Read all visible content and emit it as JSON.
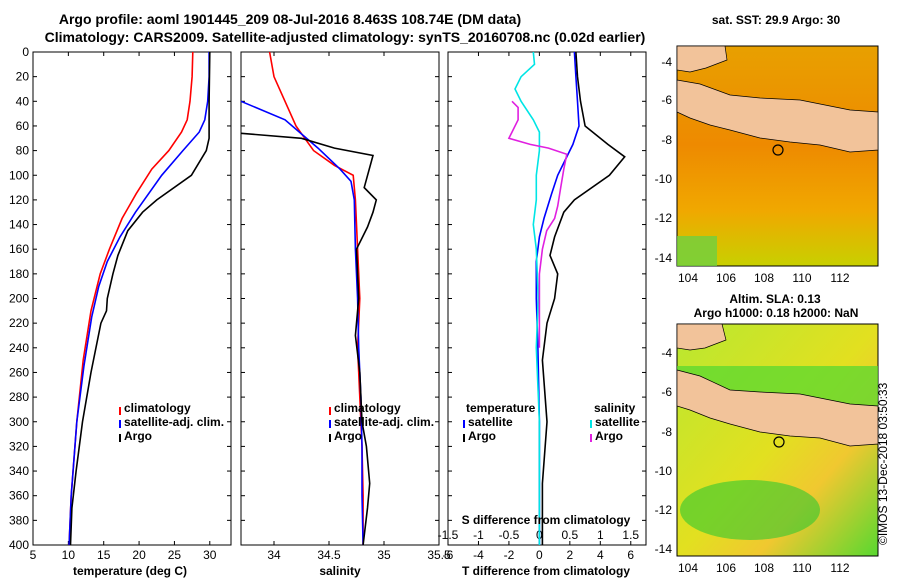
{
  "colors": {
    "climatology": "#ff0000",
    "satellite": "#0000ff",
    "argo": "#000000",
    "sat_s": "#00e5e5",
    "argo_s": "#e020e0",
    "land": "#f2c39a"
  },
  "chart_data": [
    {
      "type": "line",
      "id": "temp",
      "title": "Argo profile: aoml 1901445_209 08-Jul-2016 8.463S 108.74E (DM data)",
      "xlabel": "temperature (deg C)",
      "ylabel": "",
      "xlim": [
        5,
        33
      ],
      "ylim": [
        400,
        0
      ],
      "xticks": [
        5,
        10,
        15,
        20,
        25,
        30
      ],
      "yticks": [
        0,
        20,
        40,
        60,
        80,
        100,
        120,
        140,
        160,
        180,
        200,
        220,
        240,
        260,
        280,
        300,
        320,
        340,
        360,
        380,
        400
      ],
      "legend": [
        "climatology",
        "satellite-adj. clim.",
        "Argo"
      ],
      "series": [
        {
          "name": "climatology",
          "color": "#ff0000",
          "points": [
            [
              27.6,
              0
            ],
            [
              27.5,
              20
            ],
            [
              27.2,
              40
            ],
            [
              26.8,
              55
            ],
            [
              26.0,
              65
            ],
            [
              24.2,
              80
            ],
            [
              21.8,
              95
            ],
            [
              19.6,
              115
            ],
            [
              17.6,
              135
            ],
            [
              15.8,
              160
            ],
            [
              14.5,
              180
            ],
            [
              13.2,
              210
            ],
            [
              12.1,
              250
            ],
            [
              11.2,
              300
            ],
            [
              10.4,
              360
            ],
            [
              10.1,
              400
            ]
          ]
        },
        {
          "name": "satellite-adj. clim.",
          "color": "#0000ff",
          "points": [
            [
              29.9,
              0
            ],
            [
              29.9,
              20
            ],
            [
              29.7,
              40
            ],
            [
              29.3,
              55
            ],
            [
              28.5,
              65
            ],
            [
              26.2,
              80
            ],
            [
              23.2,
              100
            ],
            [
              19.5,
              130
            ],
            [
              17.3,
              150
            ],
            [
              15.5,
              170
            ],
            [
              14.3,
              190
            ],
            [
              13.3,
              215
            ],
            [
              12.2,
              255
            ],
            [
              11.2,
              300
            ],
            [
              10.4,
              360
            ],
            [
              10.1,
              400
            ]
          ]
        },
        {
          "name": "Argo",
          "color": "#000000",
          "points": [
            [
              30.0,
              0
            ],
            [
              29.9,
              40
            ],
            [
              29.9,
              70
            ],
            [
              29.5,
              80
            ],
            [
              27.4,
              100
            ],
            [
              22.5,
              120
            ],
            [
              20.5,
              130
            ],
            [
              18.4,
              145
            ],
            [
              17.0,
              165
            ],
            [
              16.3,
              180
            ],
            [
              15.5,
              200
            ],
            [
              15.4,
              210
            ],
            [
              14.6,
              220
            ],
            [
              13.2,
              260
            ],
            [
              12.0,
              300
            ],
            [
              11.1,
              340
            ],
            [
              10.5,
              370
            ],
            [
              10.3,
              400
            ]
          ]
        }
      ]
    },
    {
      "type": "line",
      "id": "sal",
      "title": "Climatology: CARS2009. Satellite-adjusted climatology: synTS_20160708.nc (0.02d earlier)",
      "xlabel": "salinity",
      "xlim": [
        33.7,
        35.5
      ],
      "ylim": [
        400,
        0
      ],
      "xticks": [
        34,
        34.5,
        35,
        35.5
      ],
      "legend": [
        "climatology",
        "satellite-adj. clim.",
        "Argo"
      ],
      "series": [
        {
          "name": "climatology",
          "color": "#ff0000",
          "points": [
            [
              33.96,
              0
            ],
            [
              34.0,
              20
            ],
            [
              34.1,
              40
            ],
            [
              34.2,
              60
            ],
            [
              34.36,
              80
            ],
            [
              34.55,
              92
            ],
            [
              34.72,
              100
            ],
            [
              34.74,
              120
            ],
            [
              34.75,
              140
            ],
            [
              34.76,
              160
            ],
            [
              34.78,
              200
            ],
            [
              34.76,
              240
            ],
            [
              34.78,
              280
            ],
            [
              34.8,
              320
            ],
            [
              34.81,
              360
            ],
            [
              34.81,
              400
            ]
          ]
        },
        {
          "name": "satellite-adj. clim.",
          "color": "#0000ff",
          "points": [
            [
              33.7,
              40
            ],
            [
              34.1,
              55
            ],
            [
              34.4,
              78
            ],
            [
              34.6,
              95
            ],
            [
              34.7,
              105
            ],
            [
              34.73,
              120
            ],
            [
              34.74,
              160
            ],
            [
              34.76,
              200
            ],
            [
              34.77,
              240
            ],
            [
              34.79,
              280
            ],
            [
              34.8,
              320
            ],
            [
              34.8,
              360
            ],
            [
              34.81,
              400
            ]
          ]
        },
        {
          "name": "Argo",
          "color": "#000000",
          "points": [
            [
              33.7,
              66
            ],
            [
              34.25,
              70
            ],
            [
              34.55,
              78
            ],
            [
              34.9,
              84
            ],
            [
              34.82,
              110
            ],
            [
              34.93,
              120
            ],
            [
              34.9,
              130
            ],
            [
              34.85,
              142
            ],
            [
              34.75,
              160
            ],
            [
              34.76,
              180
            ],
            [
              34.77,
              200
            ],
            [
              34.74,
              230
            ],
            [
              34.78,
              260
            ],
            [
              34.8,
              300
            ],
            [
              34.84,
              320
            ],
            [
              34.86,
              340
            ],
            [
              34.87,
              350
            ],
            [
              34.85,
              370
            ],
            [
              34.81,
              400
            ]
          ]
        }
      ]
    },
    {
      "type": "line",
      "id": "diff",
      "title": "",
      "xlabel": "T difference from climatology",
      "x2label": "S difference from climatology",
      "xlim": [
        -6,
        7
      ],
      "ylim": [
        400,
        0
      ],
      "x2lim": [
        -1.5,
        1.75
      ],
      "xticks": [
        -6,
        -4,
        -2,
        0,
        2,
        4,
        6
      ],
      "x2ticks": [
        -1.5,
        -1,
        -0.5,
        0,
        0.5,
        1,
        1.5
      ],
      "x2ticklabels": [
        "-1.5",
        "-1",
        "-0.5",
        "0",
        "0.5",
        "1",
        "1.5"
      ],
      "legend_left_title": "temperature",
      "legend_left": [
        "satellite",
        "Argo"
      ],
      "legend_right_title": "salinity",
      "legend_right": [
        "satellite",
        "Argo"
      ],
      "series": [
        {
          "name": "T satellite",
          "color": "#0000ff",
          "axis": "x",
          "points": [
            [
              2.3,
              0
            ],
            [
              2.4,
              20
            ],
            [
              2.5,
              40
            ],
            [
              2.6,
              60
            ],
            [
              2.2,
              75
            ],
            [
              1.6,
              90
            ],
            [
              1.2,
              100
            ],
            [
              0.8,
              115
            ],
            [
              0.3,
              135
            ],
            [
              0.0,
              150
            ],
            [
              -0.2,
              170
            ],
            [
              -0.2,
              200
            ],
            [
              -0.1,
              240
            ],
            [
              0.0,
              300
            ],
            [
              0.0,
              360
            ],
            [
              0.0,
              400
            ]
          ]
        },
        {
          "name": "T Argo",
          "color": "#000000",
          "axis": "x",
          "points": [
            [
              2.4,
              0
            ],
            [
              2.5,
              20
            ],
            [
              2.7,
              40
            ],
            [
              3.0,
              60
            ],
            [
              4.5,
              75
            ],
            [
              5.6,
              85
            ],
            [
              4.6,
              100
            ],
            [
              2.3,
              120
            ],
            [
              1.6,
              130
            ],
            [
              1.0,
              150
            ],
            [
              0.7,
              165
            ],
            [
              1.2,
              180
            ],
            [
              1.0,
              200
            ],
            [
              0.5,
              220
            ],
            [
              0.2,
              250
            ],
            [
              0.5,
              300
            ],
            [
              0.2,
              350
            ],
            [
              0.2,
              400
            ]
          ]
        },
        {
          "name": "S satellite",
          "color": "#00e5e5",
          "axis": "x2",
          "points": [
            [
              -0.1,
              0
            ],
            [
              -0.08,
              10
            ],
            [
              -0.3,
              20
            ],
            [
              -0.4,
              30
            ],
            [
              -0.3,
              40
            ],
            [
              -0.1,
              55
            ],
            [
              0.0,
              65
            ],
            [
              0.0,
              80
            ],
            [
              -0.05,
              100
            ],
            [
              -0.05,
              120
            ],
            [
              -0.1,
              140
            ],
            [
              -0.05,
              160
            ],
            [
              -0.02,
              200
            ],
            [
              -0.05,
              240
            ],
            [
              0.0,
              300
            ],
            [
              0.0,
              360
            ],
            [
              0.0,
              400
            ]
          ]
        },
        {
          "name": "S Argo",
          "color": "#e020e0",
          "axis": "x2",
          "points": [
            [
              -0.45,
              40
            ],
            [
              -0.35,
              45
            ],
            [
              -0.35,
              55
            ],
            [
              -0.45,
              65
            ],
            [
              -0.5,
              70
            ],
            [
              -0.15,
              75
            ],
            [
              0.15,
              78
            ],
            [
              0.45,
              83
            ],
            [
              0.4,
              95
            ],
            [
              0.35,
              110
            ],
            [
              0.3,
              125
            ],
            [
              0.25,
              135
            ],
            [
              0.12,
              145
            ],
            [
              0.05,
              160
            ],
            [
              0.0,
              180
            ],
            [
              0.0,
              200
            ],
            [
              0.0,
              240
            ]
          ]
        }
      ]
    }
  ],
  "map_sst": {
    "title": "sat. SST: 29.9 Argo: 30",
    "xticks": [
      "104",
      "106",
      "108",
      "110",
      "112"
    ],
    "yticks": [
      "-4",
      "-6",
      "-8",
      "-10",
      "-12",
      "-14"
    ]
  },
  "map_sla": {
    "title1": "Altim. SLA: 0.13",
    "title2": "Argo h1000: 0.18 h2000: NaN",
    "xticks": [
      "104",
      "106",
      "108",
      "110",
      "112"
    ],
    "yticks": [
      "-4",
      "-6",
      "-8",
      "-10",
      "-12",
      "-14"
    ]
  },
  "credit": "©IMOS 13-Dec-2018 03:50:33"
}
